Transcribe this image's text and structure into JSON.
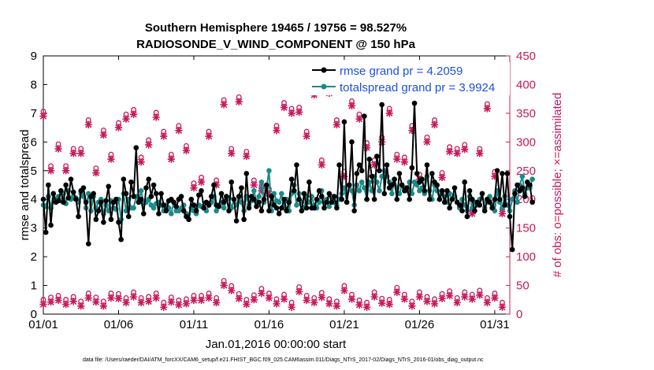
{
  "chart_data": {
    "type": "line",
    "title_line1": "Southern Hemisphere 19465 / 19756 = 98.527%",
    "title_line2": "RADIOSONDE_V_WIND_COMPONENT @ 150 hPa",
    "xlabel": "Jan.01,2016 00:00:00 start",
    "ylabel_left": "rmse and totalspread",
    "ylabel_right": "# of obs: o=possible; ×=assimilated",
    "footer": "data file: /Users/raeder/DAI/ATM_forcXX/CAM6_setup/f.e21.FHIST_BGC.f09_025.CAM6assim.011/Diags_NTrS_2017-02/Diags_NTrS_2016-01/obs_diag_output.nc",
    "xlim": [
      1,
      32
    ],
    "xticks": [
      "01/01",
      "01/06",
      "01/11",
      "01/16",
      "01/21",
      "01/26",
      "01/31"
    ],
    "xtick_values": [
      1,
      6,
      11,
      16,
      21,
      26,
      31
    ],
    "ylim_left": [
      0,
      9
    ],
    "yticks_left": [
      "0",
      "1",
      "2",
      "3",
      "4",
      "5",
      "6",
      "7",
      "8",
      "9"
    ],
    "ylim_right": [
      0,
      450
    ],
    "yticks_right": [
      "0",
      "50",
      "100",
      "150",
      "200",
      "250",
      "300",
      "350",
      "400",
      "450"
    ],
    "legend": [
      "rmse grand pr = 4.2059",
      "totalspread grand pr = 3.9924"
    ],
    "colors": {
      "rmse": "#000000",
      "spread": "#1a8a8a",
      "obs": "#c8185a"
    },
    "series": [
      {
        "name": "rmse",
        "values": [
          4.0,
          2.85,
          4.5,
          3.1,
          4.2,
          3.9,
          3.95,
          4.3,
          3.9,
          4.5,
          4.05,
          4.7,
          4.25,
          4.0,
          3.4,
          4.3,
          4.4,
          3.9,
          2.45,
          4.1,
          4.2,
          3.3,
          3.6,
          3.9,
          3.2,
          3.95,
          4.45,
          3.3,
          3.9,
          4.0,
          3.2,
          2.6,
          4.7,
          4.2,
          3.4,
          4.6,
          4.1,
          5.8,
          3.9,
          4.0,
          3.5,
          4.4,
          4.7,
          4.1,
          4.5,
          4.2,
          3.5,
          4.2,
          3.8,
          3.6,
          3.95,
          4.0,
          3.9,
          3.75,
          4.0,
          4.1,
          3.6,
          3.4,
          3.3,
          4.0,
          3.8,
          3.6,
          4.15,
          4.3,
          3.7,
          3.9,
          3.8,
          4.1,
          4.5,
          3.8,
          3.75,
          4.2,
          3.9,
          4.1,
          3.6,
          4.6,
          4.0,
          3.25,
          4.1,
          4.4,
          3.3,
          4.9,
          3.7,
          4.1,
          4.0,
          3.75,
          3.9,
          3.6,
          4.0,
          4.5,
          3.6,
          4.1,
          3.8,
          3.7,
          3.5,
          3.7,
          4.0,
          3.6,
          3.9,
          4.7,
          4.3,
          5.2,
          4.0,
          3.6,
          4.2,
          3.7,
          4.6,
          3.7,
          3.7,
          4.0,
          4.3,
          4.1,
          3.7,
          3.9,
          4.2,
          3.9,
          4.1,
          3.7,
          5.2,
          4.0,
          6.7,
          3.9,
          4.5,
          6.0,
          3.6,
          4.9,
          5.2,
          5.0,
          6.9,
          4.0,
          5.4,
          4.8,
          4.0,
          5.5,
          5.0,
          7.3,
          4.2,
          5.2,
          4.4,
          4.5,
          4.7,
          4.0,
          4.9,
          4.5,
          4.3,
          4.4,
          4.0,
          5.1,
          7.35,
          4.9,
          4.6,
          4.7,
          4.3,
          5.2,
          4.0,
          4.9,
          4.6,
          4.5,
          4.0,
          4.3,
          3.9,
          4.3,
          3.7,
          4.0,
          4.4,
          3.9,
          3.8,
          3.6,
          4.6,
          3.4,
          4.3,
          4.0,
          3.6,
          3.9,
          3.8,
          4.2,
          3.6,
          4.0,
          3.9,
          3.7,
          4.0,
          5.0,
          4.0,
          4.9,
          3.8,
          4.9,
          3.4,
          2.25,
          4.2,
          4.5,
          4.3,
          4.4,
          4.1,
          4.6,
          4.5,
          3.9
        ],
        "step": 0.16666
      },
      {
        "name": "totalspread",
        "values": [
          3.8,
          3.75,
          4.1,
          3.7,
          4.2,
          4.0,
          4.1,
          3.95,
          4.2,
          3.85,
          4.3,
          4.0,
          4.1,
          4.05,
          3.9,
          4.2,
          4.1,
          3.7,
          4.2,
          3.6,
          4.1,
          3.7,
          3.9,
          4.0,
          3.5,
          3.8,
          3.6,
          3.95,
          3.7,
          3.65,
          4.0,
          3.3,
          4.2,
          3.6,
          4.0,
          3.7,
          3.7,
          4.1,
          3.9,
          4.3,
          3.85,
          3.9,
          4.0,
          3.8,
          3.7,
          3.85,
          3.9,
          3.8,
          3.6,
          3.8,
          3.7,
          3.5,
          3.9,
          3.6,
          3.6,
          3.7,
          3.8,
          3.5,
          3.3,
          3.7,
          3.6,
          3.5,
          3.8,
          3.75,
          3.7,
          3.6,
          3.8,
          3.9,
          4.1,
          3.6,
          3.8,
          3.9,
          3.7,
          4.0,
          4.05,
          3.7,
          4.0,
          3.8,
          4.1,
          3.9,
          3.6,
          4.1,
          3.8,
          3.95,
          4.3,
          3.9,
          4.1,
          4.6,
          3.9,
          4.4,
          5.0,
          3.6,
          4.2,
          3.95,
          3.9,
          4.2,
          3.7,
          4.0,
          3.6,
          4.2,
          4.5,
          3.8,
          4.2,
          3.9,
          3.7,
          4.1,
          3.9,
          4.1,
          3.8,
          3.7,
          3.9,
          4.3,
          3.9,
          4.0,
          3.75,
          4.1,
          3.9,
          3.8,
          4.0,
          4.2,
          4.4,
          3.9,
          4.5,
          4.3,
          3.8,
          4.5,
          4.3,
          4.6,
          4.4,
          4.0,
          4.6,
          4.3,
          4.8,
          4.6,
          4.3,
          4.8,
          5.0,
          4.8,
          4.6,
          4.2,
          4.7,
          4.4,
          4.2,
          4.5,
          4.4,
          4.3,
          4.6,
          4.2,
          4.6,
          4.5,
          4.3,
          4.4,
          4.2,
          4.8,
          4.3,
          4.0,
          4.5,
          4.3,
          4.0,
          4.2,
          4.1,
          3.9,
          4.2,
          4.0,
          4.1,
          3.9,
          3.7,
          4.0,
          3.8,
          3.6,
          4.1,
          3.7,
          3.9,
          3.8,
          4.0,
          4.2,
          3.7,
          3.9,
          4.1,
          3.8,
          3.6,
          4.3,
          3.9,
          3.7,
          4.1,
          3.8,
          3.6,
          4.0,
          4.3,
          3.9,
          4.5,
          4.8,
          4.2,
          4.4,
          4.4,
          4.7
        ],
        "step": 0.16666
      }
    ],
    "obs_possible": {
      "x": [
        1.0,
        1.5,
        2.0,
        2.5,
        3.0,
        3.5,
        4.0,
        4.5,
        5.0,
        5.5,
        6.0,
        6.5,
        7.0,
        7.5,
        8.0,
        8.5,
        9.0,
        9.5,
        10.0,
        10.5,
        11.0,
        11.5,
        12.0,
        12.5,
        13.0,
        13.5,
        14.0,
        14.5,
        15.0,
        15.5,
        16.0,
        16.5,
        17.0,
        17.5,
        18.0,
        18.5,
        19.0,
        19.5,
        20.0,
        20.5,
        21.0,
        21.5,
        22.0,
        22.5,
        23.0,
        23.5,
        24.0,
        24.5,
        25.0,
        25.5,
        26.0,
        26.5,
        27.0,
        27.5,
        28.0,
        28.5,
        29.0,
        29.5,
        30.0,
        30.5,
        31.0,
        31.5
      ],
      "high": [
        345,
        250,
        288,
        250,
        280,
        280,
        330,
        246,
        312,
        270,
        325,
        340,
        348,
        265,
        295,
        343,
        310,
        270,
        320,
        285,
        220,
        230,
        310,
        225,
        365,
        280,
        370,
        275,
        225,
        215,
        210,
        320,
        360,
        350,
        352,
        310,
        382,
        260,
        385,
        330,
        240,
        363,
        340,
        290,
        260,
        300,
        350,
        270,
        265,
        320,
        235,
        300,
        330,
        238,
        283,
        280,
        287,
        175,
        280,
        358,
        240,
        175
      ],
      "low": [
        17,
        21,
        24,
        17,
        22,
        14,
        28,
        21,
        14,
        28,
        27,
        20,
        30,
        20,
        22,
        28,
        12,
        21,
        16,
        18,
        24,
        24,
        28,
        20,
        50,
        41,
        27,
        17,
        25,
        36,
        28,
        18,
        26,
        12,
        39,
        24,
        20,
        29,
        18,
        14,
        41,
        26,
        16,
        12,
        30,
        19,
        17,
        38,
        26,
        14,
        30,
        22,
        18,
        27,
        32,
        20,
        30,
        26,
        33,
        20,
        28,
        12
      ]
    }
  }
}
